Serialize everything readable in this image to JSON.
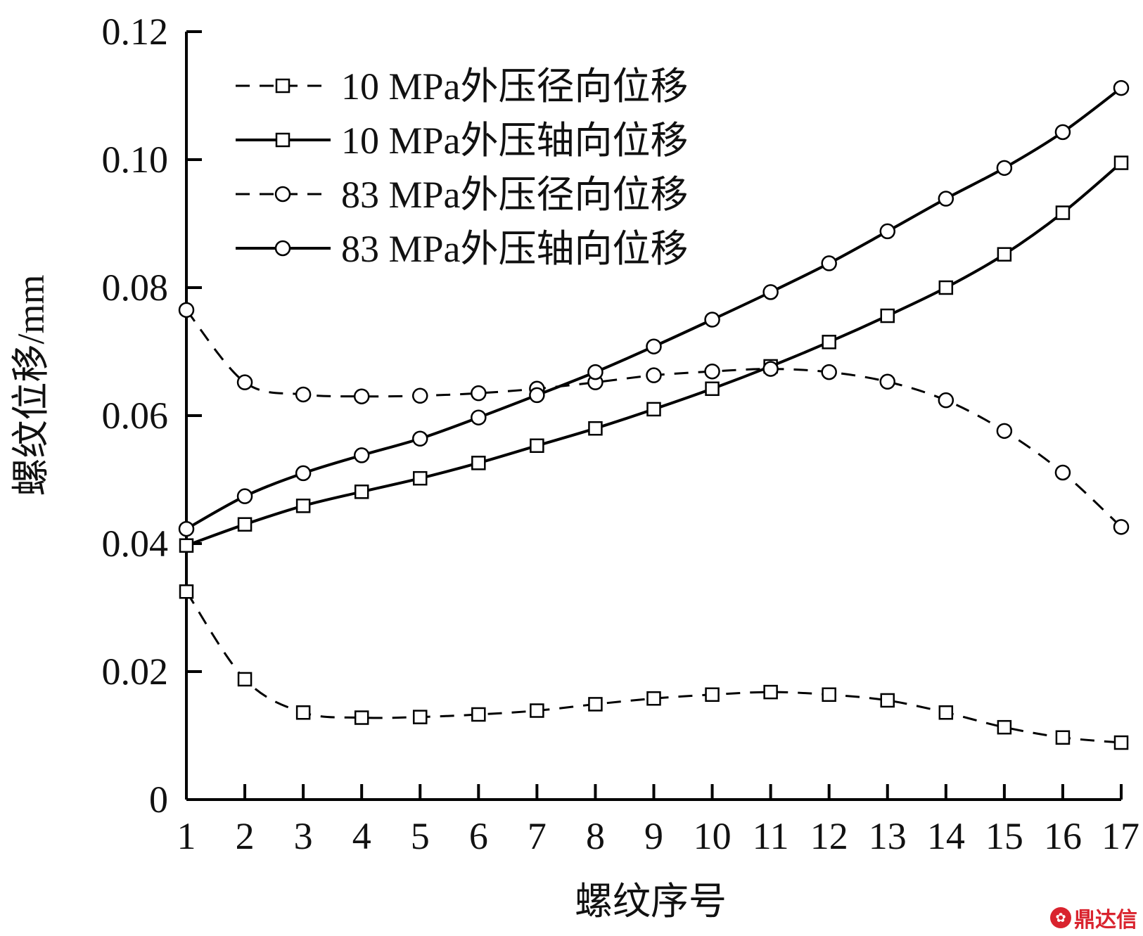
{
  "chart_data": {
    "type": "line",
    "xlabel": "螺纹序号",
    "ylabel": "螺纹位移/mm",
    "x": [
      1,
      2,
      3,
      4,
      5,
      6,
      7,
      8,
      9,
      10,
      11,
      12,
      13,
      14,
      15,
      16,
      17
    ],
    "xlim": [
      1,
      17
    ],
    "ylim": [
      0,
      0.12
    ],
    "x_ticks": [
      "1",
      "2",
      "3",
      "4",
      "5",
      "6",
      "7",
      "8",
      "9",
      "10",
      "11",
      "12",
      "13",
      "14",
      "15",
      "16",
      "17"
    ],
    "y_ticks": [
      "0",
      "0.02",
      "0.04",
      "0.06",
      "0.08",
      "0.10",
      "0.12"
    ],
    "y_tick_values": [
      0,
      0.02,
      0.04,
      0.06,
      0.08,
      0.1,
      0.12
    ],
    "grid": false,
    "legend_position": "top-left",
    "series": [
      {
        "name": "10 MPa外压径向位移",
        "marker": "square",
        "line": "dashed",
        "values": [
          0.0325,
          0.0188,
          0.0136,
          0.0128,
          0.0129,
          0.0133,
          0.0139,
          0.0149,
          0.0158,
          0.0164,
          0.0168,
          0.0164,
          0.0155,
          0.0136,
          0.0113,
          0.0097,
          0.0089
        ]
      },
      {
        "name": "10 MPa外压轴向位移",
        "marker": "square",
        "line": "solid",
        "values": [
          0.0397,
          0.043,
          0.0459,
          0.0481,
          0.0502,
          0.0526,
          0.0553,
          0.058,
          0.061,
          0.0642,
          0.0677,
          0.0715,
          0.0756,
          0.08,
          0.0852,
          0.0917,
          0.0995
        ]
      },
      {
        "name": "83 MPa外压径向位移",
        "marker": "circle",
        "line": "dashed",
        "values": [
          0.0765,
          0.0652,
          0.0633,
          0.063,
          0.0631,
          0.0635,
          0.0642,
          0.0652,
          0.0663,
          0.0669,
          0.0673,
          0.0668,
          0.0653,
          0.0624,
          0.0576,
          0.0511,
          0.0426
        ]
      },
      {
        "name": "83 MPa外压轴向位移",
        "marker": "circle",
        "line": "solid",
        "values": [
          0.0423,
          0.0474,
          0.051,
          0.0538,
          0.0564,
          0.0597,
          0.0632,
          0.0668,
          0.0708,
          0.075,
          0.0793,
          0.0838,
          0.0888,
          0.0939,
          0.0987,
          0.1043,
          0.1112
        ]
      }
    ]
  },
  "watermark": {
    "text": "鼎达信"
  }
}
